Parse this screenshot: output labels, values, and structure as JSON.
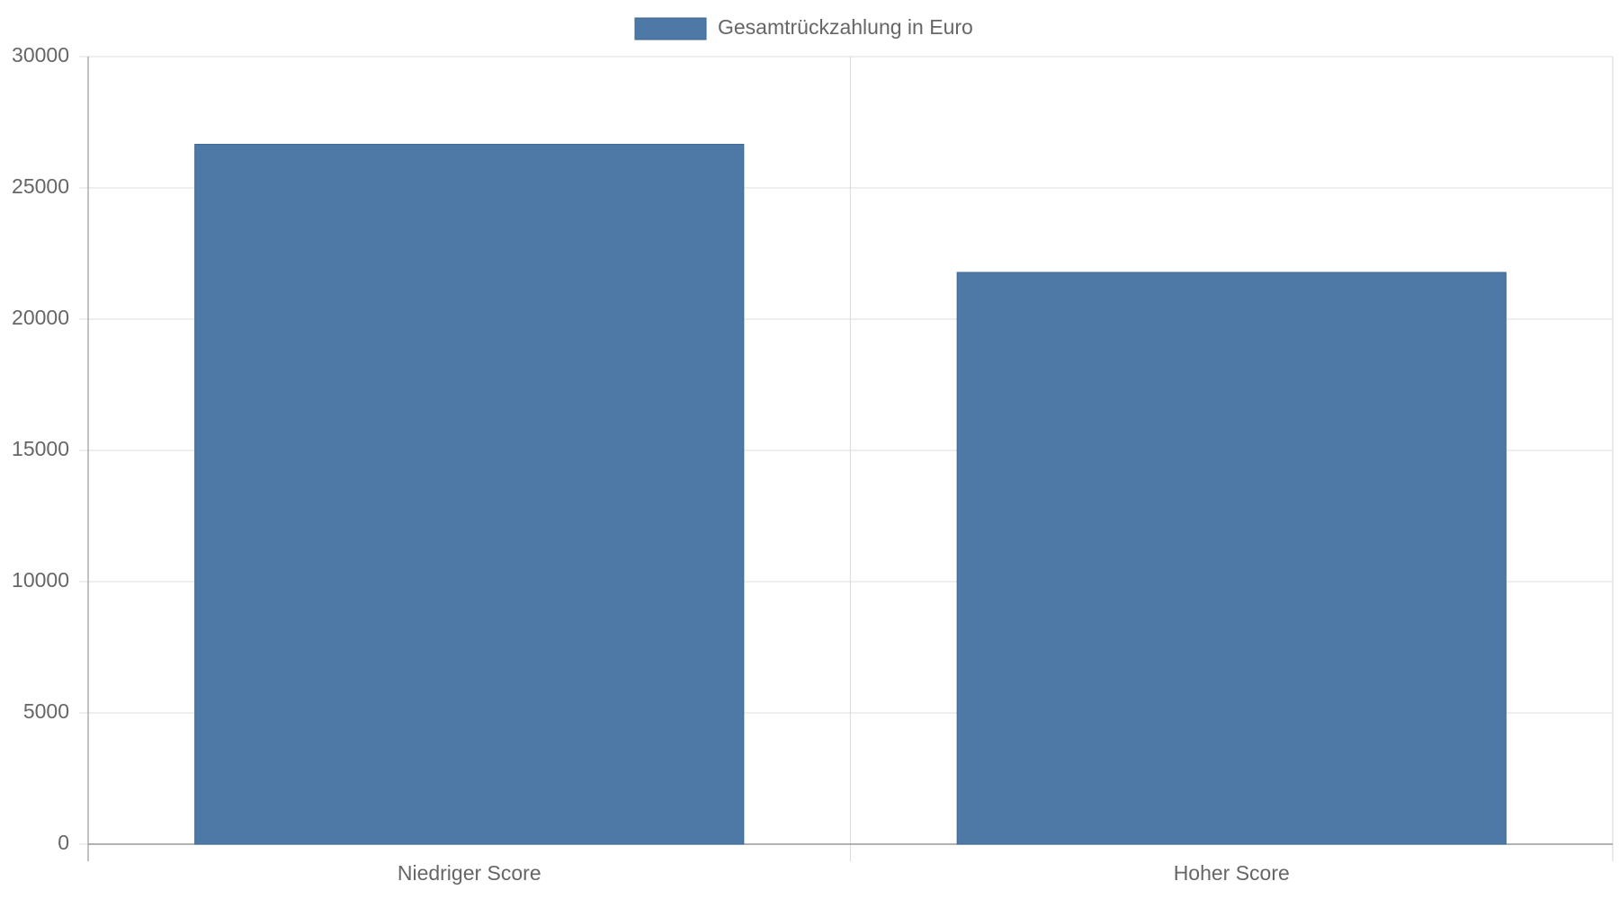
{
  "chart_data": {
    "type": "bar",
    "categories": [
      "Niedriger Score",
      "Hoher Score"
    ],
    "series": [
      {
        "name": "Gesamtrückzahlung in Euro",
        "color": "#4e79a7",
        "values": [
          26660,
          21780
        ]
      }
    ],
    "ylim": [
      0,
      30000
    ],
    "yticks": [
      0,
      5000,
      10000,
      15000,
      20000,
      25000,
      30000
    ],
    "grid": true,
    "legend": "top"
  }
}
